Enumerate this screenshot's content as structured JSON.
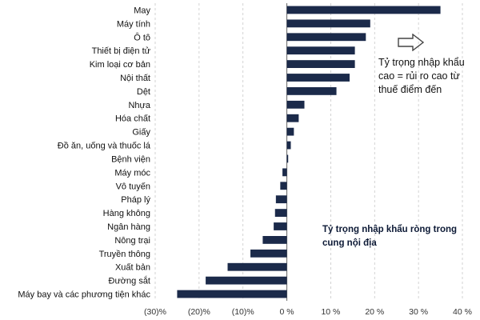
{
  "chart_data": {
    "type": "bar",
    "orientation": "horizontal",
    "categories": [
      "May",
      "Máy tính",
      "Ô tô",
      "Thiết bị điện tử",
      "Kim loại cơ bản",
      "Nội thất",
      "Dệt",
      "Nhựa",
      "Hóa chất",
      "Giấy",
      "Đồ ăn, uống và thuốc lá",
      "Bệnh viện",
      "Máy móc",
      "Vô tuyến",
      "Pháp lý",
      "Hàng không",
      "Ngân hàng",
      "Nông trại",
      "Truyền thông",
      "Xuất bản",
      "Đường sắt",
      "Máy bay và các phương tiện khác"
    ],
    "values": [
      35,
      19,
      18,
      15.5,
      15.5,
      14.3,
      11.3,
      4,
      2.7,
      1.6,
      0.9,
      0.3,
      -1,
      -1.5,
      -2.5,
      -2.7,
      -3,
      -5.5,
      -8.3,
      -13.5,
      -18.5,
      -25
    ],
    "xlim": [
      -30,
      40
    ],
    "xticks": [
      -30,
      -20,
      -10,
      0,
      10,
      20,
      30,
      40
    ],
    "xtick_labels": [
      "(30)%",
      "(20)%",
      "(10)%",
      "0 %",
      "10 %",
      "20 %",
      "30 %",
      "40 %"
    ],
    "bar_color": "#1b2a4a",
    "annotation": "Tỷ trọng nhập khẩu cao = rủi ro cao từ thuế điểm đến",
    "series_label": "Tỷ trọng nhập khẩu ròng trong cung nội địa"
  }
}
